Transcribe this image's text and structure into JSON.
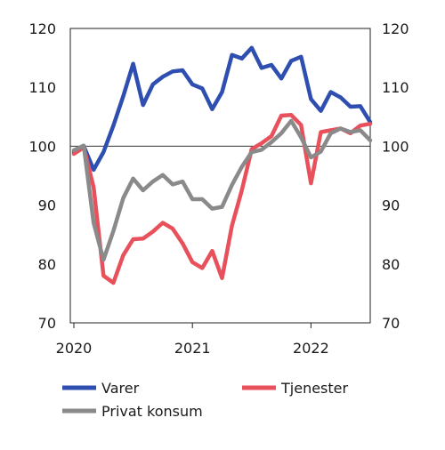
{
  "chart_data": {
    "type": "line",
    "x": [
      "2020-01",
      "2020-02",
      "2020-03",
      "2020-04",
      "2020-05",
      "2020-06",
      "2020-07",
      "2020-08",
      "2020-09",
      "2020-10",
      "2020-11",
      "2020-12",
      "2021-01",
      "2021-02",
      "2021-03",
      "2021-04",
      "2021-05",
      "2021-06",
      "2021-07",
      "2021-08",
      "2021-09",
      "2021-10",
      "2021-11",
      "2021-12",
      "2022-01",
      "2022-02",
      "2022-03",
      "2022-04",
      "2022-05",
      "2022-06",
      "2022-07"
    ],
    "x_tick_labels": [
      "2020",
      "2021",
      "2022"
    ],
    "y_tick_labels": [
      "70",
      "80",
      "90",
      "100",
      "110",
      "120"
    ],
    "ylim": [
      70,
      120
    ],
    "reference_line": 100,
    "legend_position": "bottom",
    "series": [
      {
        "name": "Varer",
        "color": "#2f4fb0",
        "values": [
          99.0,
          100.0,
          96.0,
          99.0,
          103.5,
          108.5,
          114.0,
          107.0,
          110.5,
          111.8,
          112.7,
          112.9,
          110.5,
          109.8,
          106.3,
          109.2,
          115.5,
          114.9,
          116.7,
          113.3,
          113.8,
          111.5,
          114.5,
          115.2,
          108.0,
          106.0,
          109.2,
          108.3,
          106.7,
          106.8,
          104.1
        ]
      },
      {
        "name": "Tjenester",
        "color": "#e8505b",
        "values": [
          98.7,
          99.8,
          93.0,
          78.0,
          76.8,
          81.5,
          84.2,
          84.3,
          85.5,
          87.0,
          86.0,
          83.5,
          80.3,
          79.3,
          82.2,
          77.6,
          86.5,
          92.5,
          99.5,
          100.5,
          101.7,
          105.2,
          105.3,
          103.6,
          93.7,
          102.4,
          102.7,
          103.0,
          102.2,
          103.5,
          103.8
        ]
      },
      {
        "name": "Privat konsum",
        "color": "#8a8a8a",
        "values": [
          99.3,
          100.1,
          87.0,
          80.7,
          85.6,
          91.2,
          94.5,
          92.5,
          94.0,
          95.1,
          93.5,
          94.0,
          91.0,
          91.0,
          89.4,
          89.7,
          93.4,
          96.5,
          99.0,
          99.4,
          100.7,
          102.2,
          104.3,
          101.5,
          98.1,
          99.1,
          102.2,
          103.0,
          102.4,
          102.7,
          101.0
        ]
      }
    ]
  },
  "legend": {
    "varer": "Varer",
    "tjenester": "Tjenester",
    "privat_konsum": "Privat konsum"
  }
}
